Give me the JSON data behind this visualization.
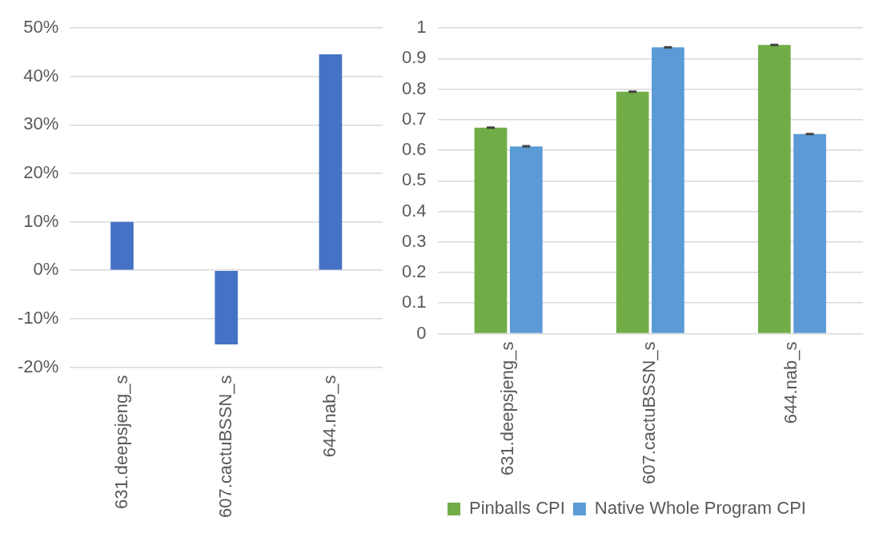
{
  "chart_data": [
    {
      "type": "bar",
      "categories": [
        "631.deepsjeng_s",
        "607.cactuBSSN_s",
        "644.nab_s"
      ],
      "values": [
        10,
        -15.3,
        44.6
      ],
      "color": "#4472c4",
      "ylim": [
        -20,
        50
      ],
      "yticks": [
        {
          "value": -20,
          "label": "-20%"
        },
        {
          "value": -10,
          "label": "-10%"
        },
        {
          "value": 0,
          "label": "0%"
        },
        {
          "value": 10,
          "label": "10%"
        },
        {
          "value": 20,
          "label": "20%"
        },
        {
          "value": 30,
          "label": "30%"
        },
        {
          "value": 40,
          "label": "40%"
        },
        {
          "value": 50,
          "label": "50%"
        }
      ],
      "grid": "y"
    },
    {
      "type": "bar",
      "categories": [
        "631.deepsjeng_s",
        "607.cactuBSSN_s",
        "644.nab_s"
      ],
      "series": [
        {
          "name": "Pinballs CPI",
          "color": "#70ad47",
          "values": [
            0.674,
            0.792,
            0.945
          ],
          "errors": [
            0.002,
            0.002,
            0.002
          ]
        },
        {
          "name": "Native Whole Program CPI",
          "color": "#5b9bd5",
          "values": [
            0.613,
            0.937,
            0.653
          ],
          "errors": [
            0.002,
            0.002,
            0.002
          ]
        }
      ],
      "ylim": [
        0,
        1
      ],
      "yticks": [
        0,
        0.1,
        0.2,
        0.3,
        0.4,
        0.5,
        0.6,
        0.7,
        0.8,
        0.9,
        1
      ],
      "grid": "y",
      "legend": "bottom"
    }
  ]
}
